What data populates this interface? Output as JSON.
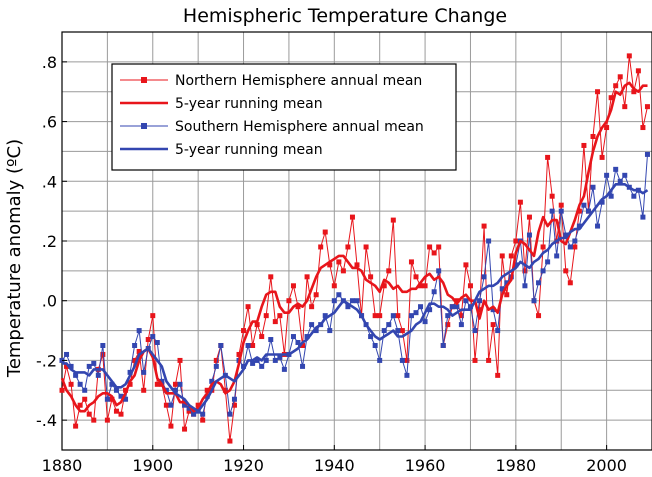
{
  "chart_data": {
    "type": "line",
    "title": "Hemispheric Temperature Change",
    "xlabel": "",
    "ylabel": "Temperature anomaly (ºC)",
    "xlim": [
      1880,
      2010
    ],
    "ylim": [
      -0.5,
      0.9
    ],
    "x_ticks": [
      "1880",
      "1900",
      "1920",
      "1940",
      "1960",
      "1980",
      "2000"
    ],
    "x_tick_values": [
      1880,
      1900,
      1920,
      1940,
      1960,
      1980,
      2000
    ],
    "y_ticks": [
      "-.4",
      "-.2",
      ".0",
      ".2",
      ".4",
      ".6",
      ".8"
    ],
    "y_tick_values": [
      -0.4,
      -0.2,
      0.0,
      0.2,
      0.4,
      0.6,
      0.8
    ],
    "grid": true,
    "legend_position": "top-left",
    "x": [
      1880,
      1881,
      1882,
      1883,
      1884,
      1885,
      1886,
      1887,
      1888,
      1889,
      1890,
      1891,
      1892,
      1893,
      1894,
      1895,
      1896,
      1897,
      1898,
      1899,
      1900,
      1901,
      1902,
      1903,
      1904,
      1905,
      1906,
      1907,
      1908,
      1909,
      1910,
      1911,
      1912,
      1913,
      1914,
      1915,
      1916,
      1917,
      1918,
      1919,
      1920,
      1921,
      1922,
      1923,
      1924,
      1925,
      1926,
      1927,
      1928,
      1929,
      1930,
      1931,
      1932,
      1933,
      1934,
      1935,
      1936,
      1937,
      1938,
      1939,
      1940,
      1941,
      1942,
      1943,
      1944,
      1945,
      1946,
      1947,
      1948,
      1949,
      1950,
      1951,
      1952,
      1953,
      1954,
      1955,
      1956,
      1957,
      1958,
      1959,
      1960,
      1961,
      1962,
      1963,
      1964,
      1965,
      1966,
      1967,
      1968,
      1969,
      1970,
      1971,
      1972,
      1973,
      1974,
      1975,
      1976,
      1977,
      1978,
      1979,
      1980,
      1981,
      1982,
      1983,
      1984,
      1985,
      1986,
      1987,
      1988,
      1989,
      1990,
      1991,
      1992,
      1993,
      1994,
      1995,
      1996,
      1997,
      1998,
      1999,
      2000,
      2001,
      2002,
      2003,
      2004,
      2005,
      2006,
      2007,
      2008,
      2009
    ],
    "series": [
      {
        "name": "Northern Hemisphere annual mean",
        "color": "#e8151b",
        "marker": "square",
        "values": [
          -0.3,
          -0.22,
          -0.28,
          -0.42,
          -0.35,
          -0.33,
          -0.38,
          -0.4,
          -0.23,
          -0.18,
          -0.4,
          -0.33,
          -0.37,
          -0.38,
          -0.3,
          -0.28,
          -0.2,
          -0.17,
          -0.3,
          -0.13,
          -0.05,
          -0.28,
          -0.28,
          -0.35,
          -0.42,
          -0.28,
          -0.2,
          -0.43,
          -0.37,
          -0.38,
          -0.35,
          -0.4,
          -0.3,
          -0.3,
          -0.2,
          -0.15,
          -0.3,
          -0.47,
          -0.35,
          -0.18,
          -0.1,
          -0.02,
          -0.15,
          -0.08,
          -0.12,
          -0.05,
          0.08,
          -0.07,
          -0.05,
          -0.18,
          0.0,
          0.05,
          -0.02,
          -0.15,
          0.08,
          -0.02,
          0.02,
          0.18,
          0.23,
          0.12,
          0.05,
          0.13,
          0.1,
          0.18,
          0.28,
          0.12,
          -0.05,
          0.18,
          0.08,
          -0.05,
          -0.05,
          0.05,
          0.1,
          0.27,
          -0.05,
          -0.1,
          -0.2,
          0.13,
          0.08,
          0.05,
          0.05,
          0.18,
          0.16,
          0.18,
          -0.15,
          -0.08,
          -0.02,
          0.0,
          -0.05,
          0.12,
          0.05,
          -0.2,
          -0.03,
          0.25,
          -0.2,
          -0.08,
          -0.25,
          0.15,
          0.02,
          0.15,
          0.2,
          0.33,
          0.1,
          0.28,
          0.0,
          -0.05,
          0.18,
          0.48,
          0.35,
          0.2,
          0.32,
          0.1,
          0.06,
          0.18,
          0.3,
          0.52,
          0.3,
          0.55,
          0.7,
          0.48,
          0.58,
          0.68,
          0.72,
          0.75,
          0.65,
          0.82,
          0.7,
          0.77,
          0.58,
          0.65
        ]
      },
      {
        "name": "5-year running mean",
        "color": "#e8151b",
        "marker": "none",
        "values": [
          -0.26,
          -0.3,
          -0.32,
          -0.35,
          -0.37,
          -0.37,
          -0.35,
          -0.34,
          -0.32,
          -0.31,
          -0.31,
          -0.32,
          -0.35,
          -0.34,
          -0.31,
          -0.27,
          -0.25,
          -0.2,
          -0.17,
          -0.16,
          -0.19,
          -0.26,
          -0.28,
          -0.31,
          -0.31,
          -0.31,
          -0.34,
          -0.34,
          -0.35,
          -0.37,
          -0.36,
          -0.33,
          -0.31,
          -0.28,
          -0.27,
          -0.28,
          -0.31,
          -0.3,
          -0.27,
          -0.21,
          -0.14,
          -0.1,
          -0.07,
          -0.07,
          -0.02,
          0.02,
          0.03,
          0.03,
          -0.02,
          -0.04,
          -0.04,
          -0.02,
          -0.01,
          -0.02,
          0.0,
          0.04,
          0.08,
          0.11,
          0.12,
          0.13,
          0.14,
          0.15,
          0.15,
          0.13,
          0.11,
          0.11,
          0.1,
          0.07,
          0.06,
          0.05,
          0.03,
          0.07,
          0.06,
          0.04,
          0.05,
          0.03,
          0.03,
          0.04,
          0.04,
          0.06,
          0.08,
          0.09,
          0.07,
          0.08,
          0.06,
          0.02,
          0.01,
          -0.01,
          0.01,
          0.02,
          0.0,
          0.0,
          -0.06,
          0.0,
          -0.03,
          -0.02,
          -0.04,
          0.02,
          0.05,
          0.07,
          0.16,
          0.2,
          0.19,
          0.17,
          0.15,
          0.23,
          0.28,
          0.25,
          0.27,
          0.27,
          0.2,
          0.19,
          0.23,
          0.27,
          0.32,
          0.35,
          0.43,
          0.5,
          0.55,
          0.58,
          0.6,
          0.64,
          0.7,
          0.69,
          0.72,
          0.73,
          0.71,
          0.7,
          0.72,
          0.72
        ]
      },
      {
        "name": "Southern Hemisphere annual mean",
        "color": "#3346b0",
        "marker": "square",
        "values": [
          -0.2,
          -0.18,
          -0.22,
          -0.25,
          -0.28,
          -0.3,
          -0.22,
          -0.21,
          -0.25,
          -0.15,
          -0.33,
          -0.28,
          -0.3,
          -0.32,
          -0.33,
          -0.24,
          -0.15,
          -0.1,
          -0.24,
          -0.16,
          -0.12,
          -0.14,
          -0.27,
          -0.3,
          -0.35,
          -0.3,
          -0.28,
          -0.35,
          -0.36,
          -0.38,
          -0.37,
          -0.38,
          -0.32,
          -0.27,
          -0.22,
          -0.15,
          -0.25,
          -0.38,
          -0.33,
          -0.2,
          -0.22,
          -0.15,
          -0.21,
          -0.2,
          -0.22,
          -0.2,
          -0.13,
          -0.2,
          -0.19,
          -0.23,
          -0.18,
          -0.12,
          -0.14,
          -0.22,
          -0.12,
          -0.08,
          -0.1,
          -0.08,
          -0.05,
          -0.1,
          0.0,
          0.02,
          0.0,
          -0.02,
          0.0,
          0.0,
          -0.05,
          -0.08,
          -0.12,
          -0.15,
          -0.2,
          -0.1,
          -0.08,
          -0.05,
          -0.1,
          -0.2,
          -0.25,
          -0.05,
          -0.04,
          -0.02,
          -0.07,
          -0.03,
          0.03,
          0.1,
          -0.15,
          -0.05,
          -0.02,
          -0.02,
          -0.08,
          0.0,
          -0.02,
          -0.1,
          0.0,
          0.08,
          0.2,
          -0.03,
          -0.1,
          0.04,
          0.06,
          0.08,
          0.12,
          0.2,
          0.05,
          0.22,
          0.0,
          0.06,
          0.1,
          0.13,
          0.3,
          0.15,
          0.3,
          0.22,
          0.18,
          0.2,
          0.25,
          0.32,
          0.3,
          0.38,
          0.25,
          0.33,
          0.42,
          0.35,
          0.44,
          0.4,
          0.42,
          0.38,
          0.35,
          0.37,
          0.28,
          0.49
        ]
      },
      {
        "name": "5-year running mean",
        "color": "#3346b0",
        "marker": "none",
        "values": [
          -0.21,
          -0.21,
          -0.23,
          -0.24,
          -0.24,
          -0.24,
          -0.25,
          -0.23,
          -0.23,
          -0.23,
          -0.25,
          -0.27,
          -0.29,
          -0.29,
          -0.28,
          -0.25,
          -0.22,
          -0.18,
          -0.17,
          -0.16,
          -0.18,
          -0.2,
          -0.22,
          -0.27,
          -0.29,
          -0.31,
          -0.32,
          -0.33,
          -0.35,
          -0.36,
          -0.37,
          -0.35,
          -0.33,
          -0.3,
          -0.27,
          -0.26,
          -0.25,
          -0.26,
          -0.27,
          -0.25,
          -0.23,
          -0.2,
          -0.2,
          -0.19,
          -0.2,
          -0.18,
          -0.18,
          -0.18,
          -0.18,
          -0.18,
          -0.18,
          -0.17,
          -0.16,
          -0.14,
          -0.13,
          -0.11,
          -0.09,
          -0.08,
          -0.06,
          -0.05,
          -0.04,
          -0.02,
          0.0,
          -0.01,
          -0.02,
          -0.03,
          -0.05,
          -0.08,
          -0.1,
          -0.12,
          -0.13,
          -0.12,
          -0.11,
          -0.1,
          -0.12,
          -0.12,
          -0.11,
          -0.1,
          -0.08,
          -0.07,
          -0.04,
          -0.01,
          -0.01,
          -0.02,
          -0.02,
          -0.03,
          -0.05,
          -0.04,
          -0.03,
          -0.03,
          -0.03,
          0.0,
          0.03,
          0.04,
          0.05,
          0.05,
          0.06,
          0.08,
          0.09,
          0.1,
          0.11,
          0.13,
          0.12,
          0.11,
          0.13,
          0.14,
          0.16,
          0.17,
          0.19,
          0.2,
          0.21,
          0.21,
          0.23,
          0.24,
          0.24,
          0.26,
          0.28,
          0.3,
          0.32,
          0.34,
          0.35,
          0.37,
          0.39,
          0.39,
          0.39,
          0.38,
          0.37,
          0.37,
          0.36,
          0.37
        ]
      }
    ]
  }
}
